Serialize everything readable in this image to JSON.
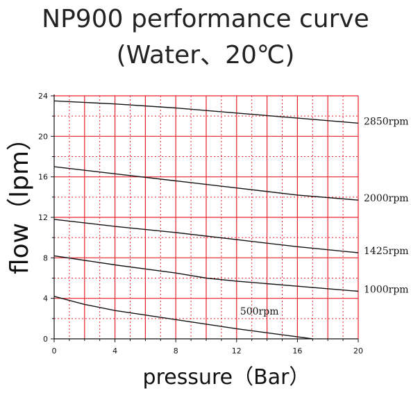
{
  "chart_data": {
    "type": "line",
    "title": [
      "NP900 performance curve",
      "(Water、20℃)"
    ],
    "xlabel": "pressure（Bar）",
    "ylabel": "flow（lpm）",
    "xlim": [
      0,
      20
    ],
    "ylim": [
      0,
      24
    ],
    "xticks": [
      0,
      4,
      8,
      12,
      16,
      20
    ],
    "yticks": [
      0,
      4,
      8,
      12,
      16,
      20,
      24
    ],
    "grid": true,
    "grid_color": "#e8202a",
    "line_color": "#111111",
    "series": [
      {
        "name": "2850rpm",
        "x": [
          0,
          4,
          8,
          12,
          16,
          20
        ],
        "y": [
          23.5,
          23.2,
          22.8,
          22.3,
          21.8,
          21.3
        ]
      },
      {
        "name": "2000rpm",
        "x": [
          0,
          4,
          8,
          12,
          16,
          20
        ],
        "y": [
          17.0,
          16.3,
          15.6,
          14.9,
          14.2,
          13.7
        ]
      },
      {
        "name": "1425rpm",
        "x": [
          0,
          4,
          8,
          12,
          16,
          20
        ],
        "y": [
          11.8,
          11.1,
          10.5,
          9.8,
          9.1,
          8.5
        ]
      },
      {
        "name": "1000rpm",
        "x": [
          0,
          4,
          8,
          10,
          12,
          16,
          20
        ],
        "y": [
          8.2,
          7.3,
          6.5,
          6.0,
          5.7,
          5.2,
          4.7
        ]
      },
      {
        "name": "500rpm",
        "x": [
          0,
          2,
          4,
          8,
          12,
          16,
          17
        ],
        "y": [
          4.2,
          3.4,
          2.8,
          1.9,
          1.0,
          0.2,
          0.0
        ]
      }
    ]
  }
}
